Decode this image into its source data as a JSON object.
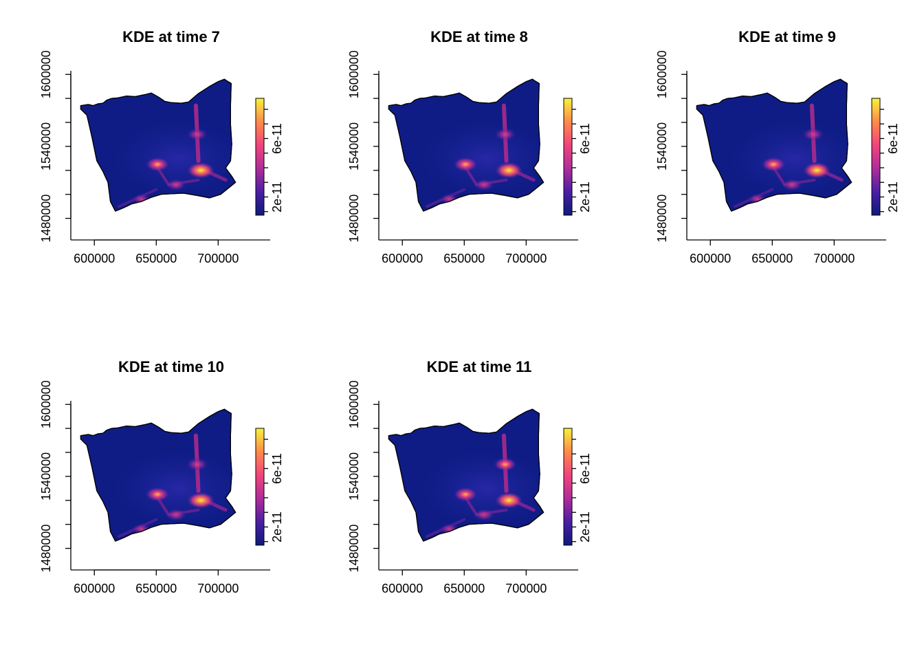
{
  "chart_data": [
    {
      "type": "heatmap",
      "title": "KDE at time 7",
      "xlabel": "",
      "ylabel": "",
      "x_ticks": [
        "600000",
        "650000",
        "700000"
      ],
      "y_ticks": [
        "1480000",
        "1500000",
        "1520000",
        "1540000",
        "1560000",
        "1580000",
        "1600000"
      ],
      "y_tick_labels": [
        "1480000",
        "1540000",
        "1600000"
      ],
      "xlim": [
        581000,
        742000
      ],
      "ylim": [
        1462000,
        1603000
      ],
      "colorbar": {
        "range": [
          0,
          8e-11
        ],
        "tick_labels": [
          "2e-11",
          "6e-11"
        ],
        "palette": [
          "#0d1a7d",
          "#4b1fa4",
          "#b02d9a",
          "#f2447c",
          "#ff8a4a",
          "#f6f33a"
        ]
      },
      "hotspots": [
        {
          "x": 651000,
          "y": 1525000,
          "intensity": 0.7
        },
        {
          "x": 686000,
          "y": 1520000,
          "intensity": 1.0
        },
        {
          "x": 683000,
          "y": 1550000,
          "intensity": 0.5
        },
        {
          "x": 666000,
          "y": 1508000,
          "intensity": 0.45
        },
        {
          "x": 638000,
          "y": 1496000,
          "intensity": 0.3
        }
      ]
    },
    {
      "type": "heatmap",
      "title": "KDE at time 8",
      "xlabel": "",
      "ylabel": "",
      "x_ticks": [
        "600000",
        "650000",
        "700000"
      ],
      "y_ticks": [
        "1480000",
        "1500000",
        "1520000",
        "1540000",
        "1560000",
        "1580000",
        "1600000"
      ],
      "y_tick_labels": [
        "1480000",
        "1540000",
        "1600000"
      ],
      "xlim": [
        581000,
        742000
      ],
      "ylim": [
        1462000,
        1603000
      ],
      "colorbar": {
        "range": [
          0,
          8e-11
        ],
        "tick_labels": [
          "2e-11",
          "6e-11"
        ],
        "palette": [
          "#0d1a7d",
          "#4b1fa4",
          "#b02d9a",
          "#f2447c",
          "#ff8a4a",
          "#f6f33a"
        ]
      },
      "hotspots": [
        {
          "x": 651000,
          "y": 1525000,
          "intensity": 0.72
        },
        {
          "x": 686000,
          "y": 1520000,
          "intensity": 1.0
        },
        {
          "x": 683000,
          "y": 1550000,
          "intensity": 0.55
        },
        {
          "x": 666000,
          "y": 1508000,
          "intensity": 0.45
        },
        {
          "x": 638000,
          "y": 1496000,
          "intensity": 0.32
        }
      ]
    },
    {
      "type": "heatmap",
      "title": "KDE at time 9",
      "xlabel": "",
      "ylabel": "",
      "x_ticks": [
        "600000",
        "650000",
        "700000"
      ],
      "y_ticks": [
        "1480000",
        "1500000",
        "1520000",
        "1540000",
        "1560000",
        "1580000",
        "1600000"
      ],
      "y_tick_labels": [
        "1480000",
        "1540000",
        "1600000"
      ],
      "xlim": [
        581000,
        742000
      ],
      "ylim": [
        1462000,
        1603000
      ],
      "colorbar": {
        "range": [
          0,
          8e-11
        ],
        "tick_labels": [
          "2e-11",
          "6e-11"
        ],
        "palette": [
          "#0d1a7d",
          "#4b1fa4",
          "#b02d9a",
          "#f2447c",
          "#ff8a4a",
          "#f6f33a"
        ]
      },
      "hotspots": [
        {
          "x": 651000,
          "y": 1525000,
          "intensity": 0.75
        },
        {
          "x": 686000,
          "y": 1520000,
          "intensity": 1.0
        },
        {
          "x": 683000,
          "y": 1550000,
          "intensity": 0.6
        },
        {
          "x": 666000,
          "y": 1508000,
          "intensity": 0.5
        },
        {
          "x": 638000,
          "y": 1496000,
          "intensity": 0.35
        }
      ]
    },
    {
      "type": "heatmap",
      "title": "KDE at time 10",
      "xlabel": "",
      "ylabel": "",
      "x_ticks": [
        "600000",
        "650000",
        "700000"
      ],
      "y_ticks": [
        "1480000",
        "1500000",
        "1520000",
        "1540000",
        "1560000",
        "1580000",
        "1600000"
      ],
      "y_tick_labels": [
        "1480000",
        "1540000",
        "1600000"
      ],
      "xlim": [
        581000,
        742000
      ],
      "ylim": [
        1462000,
        1603000
      ],
      "colorbar": {
        "range": [
          0,
          8e-11
        ],
        "tick_labels": [
          "2e-11",
          "6e-11"
        ],
        "palette": [
          "#0d1a7d",
          "#4b1fa4",
          "#b02d9a",
          "#f2447c",
          "#ff8a4a",
          "#f6f33a"
        ]
      },
      "hotspots": [
        {
          "x": 651000,
          "y": 1525000,
          "intensity": 0.72
        },
        {
          "x": 686000,
          "y": 1520000,
          "intensity": 1.0
        },
        {
          "x": 683000,
          "y": 1550000,
          "intensity": 0.6
        },
        {
          "x": 666000,
          "y": 1508000,
          "intensity": 0.5
        },
        {
          "x": 638000,
          "y": 1496000,
          "intensity": 0.35
        }
      ]
    },
    {
      "type": "heatmap",
      "title": "KDE at time 11",
      "xlabel": "",
      "ylabel": "",
      "x_ticks": [
        "600000",
        "650000",
        "700000"
      ],
      "y_ticks": [
        "1480000",
        "1500000",
        "1520000",
        "1540000",
        "1560000",
        "1580000",
        "1600000"
      ],
      "y_tick_labels": [
        "1480000",
        "1540000",
        "1600000"
      ],
      "xlim": [
        581000,
        742000
      ],
      "ylim": [
        1462000,
        1603000
      ],
      "colorbar": {
        "range": [
          0,
          8e-11
        ],
        "tick_labels": [
          "2e-11",
          "6e-11"
        ],
        "palette": [
          "#0d1a7d",
          "#4b1fa4",
          "#b02d9a",
          "#f2447c",
          "#ff8a4a",
          "#f6f33a"
        ]
      },
      "hotspots": [
        {
          "x": 651000,
          "y": 1525000,
          "intensity": 0.7
        },
        {
          "x": 686000,
          "y": 1520000,
          "intensity": 1.0
        },
        {
          "x": 683000,
          "y": 1550000,
          "intensity": 0.62
        },
        {
          "x": 666000,
          "y": 1508000,
          "intensity": 0.5
        },
        {
          "x": 638000,
          "y": 1496000,
          "intensity": 0.35
        }
      ]
    }
  ]
}
